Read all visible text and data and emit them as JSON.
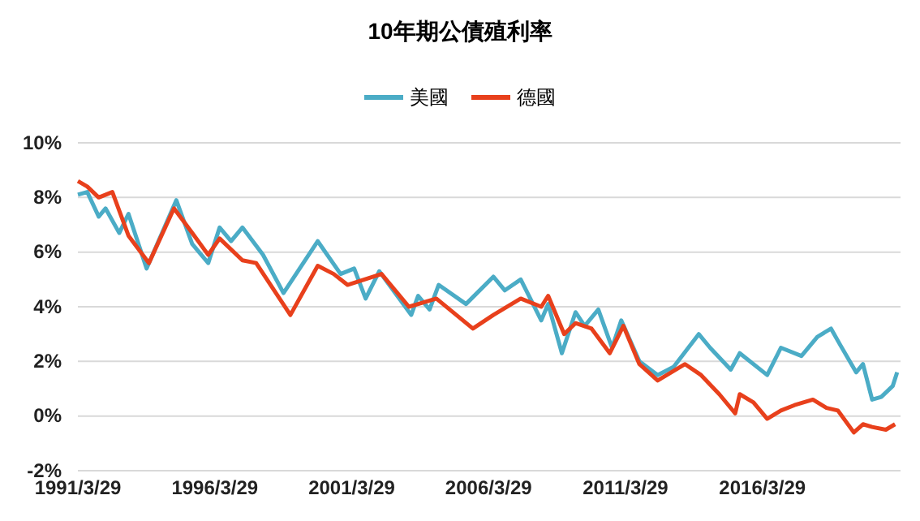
{
  "chart_data": {
    "type": "line",
    "title": "10年期公債殖利率",
    "legend": "top",
    "grid": "y",
    "line_style": "solid",
    "marker": "none",
    "xlim": [
      "1991-03-29",
      "2021-04-15"
    ],
    "xticks": [
      {
        "value": "1991-03-29",
        "label": "1991/3/29"
      },
      {
        "value": "1996-03-29",
        "label": "1996/3/29"
      },
      {
        "value": "2001-03-29",
        "label": "2001/3/29"
      },
      {
        "value": "2006-03-29",
        "label": "2006/3/29"
      },
      {
        "value": "2011-03-29",
        "label": "2011/3/29"
      },
      {
        "value": "2016-03-29",
        "label": "2016/3/29"
      }
    ],
    "ylim": [
      -2,
      10
    ],
    "yticks": [
      {
        "value": -2,
        "label": "-2%"
      },
      {
        "value": 0,
        "label": "0%"
      },
      {
        "value": 2,
        "label": "2%"
      },
      {
        "value": 4,
        "label": "4%"
      },
      {
        "value": 6,
        "label": "6%"
      },
      {
        "value": 8,
        "label": "8%"
      },
      {
        "value": 10,
        "label": "10%"
      }
    ],
    "series": [
      {
        "name": "美國",
        "color": "#4bacc6",
        "x": [
          "1991-03-29",
          "1991-08",
          "1992-01",
          "1992-04",
          "1992-10",
          "1993-02",
          "1993-10",
          "1994-11",
          "1995-06",
          "1996-01",
          "1996-06",
          "1996-11",
          "1997-04",
          "1998-01",
          "1998-10",
          "2000-01",
          "2000-11",
          "2001-05",
          "2001-10",
          "2002-04",
          "2003-06",
          "2003-09",
          "2004-02",
          "2004-06",
          "2005-06",
          "2006-06",
          "2006-11",
          "2007-06",
          "2008-03",
          "2008-06",
          "2008-12",
          "2009-06",
          "2009-10",
          "2010-04",
          "2010-10",
          "2011-02",
          "2011-10",
          "2012-06",
          "2013-01",
          "2013-12",
          "2014-05",
          "2015-02",
          "2015-06",
          "2016-06",
          "2016-12",
          "2017-09",
          "2018-04",
          "2018-10",
          "2019-02",
          "2019-09",
          "2019-12",
          "2020-04",
          "2020-08",
          "2021-01",
          "2021-03"
        ],
        "values": [
          8.1,
          8.2,
          7.3,
          7.6,
          6.7,
          7.4,
          5.4,
          7.9,
          6.3,
          5.6,
          6.9,
          6.4,
          6.9,
          5.9,
          4.5,
          6.4,
          5.2,
          5.4,
          4.3,
          5.3,
          3.7,
          4.4,
          3.9,
          4.8,
          4.1,
          5.1,
          4.6,
          5.0,
          3.5,
          4.1,
          2.3,
          3.8,
          3.3,
          3.9,
          2.5,
          3.5,
          2.0,
          1.5,
          1.8,
          3.0,
          2.5,
          1.7,
          2.3,
          1.5,
          2.5,
          2.2,
          2.9,
          3.2,
          2.6,
          1.6,
          1.9,
          0.6,
          0.7,
          1.1,
          1.6
        ]
      },
      {
        "name": "德國",
        "color": "#e8401c",
        "x": [
          "1991-03-29",
          "1991-08",
          "1992-01",
          "1992-07",
          "1993-02",
          "1993-11",
          "1994-10",
          "1995-06",
          "1996-01",
          "1996-06",
          "1997-04",
          "1997-10",
          "1999-01",
          "2000-01",
          "2000-08",
          "2001-02",
          "2002-05",
          "2003-05",
          "2004-05",
          "2005-09",
          "2006-06",
          "2007-06",
          "2008-03",
          "2008-06",
          "2009-01",
          "2009-06",
          "2010-01",
          "2010-09",
          "2011-03",
          "2011-10",
          "2012-06",
          "2013-06",
          "2014-01",
          "2014-09",
          "2015-04",
          "2015-06",
          "2015-12",
          "2016-06",
          "2016-12",
          "2017-06",
          "2018-02",
          "2018-08",
          "2019-01",
          "2019-08",
          "2019-12",
          "2020-04",
          "2020-10",
          "2021-02"
        ],
        "values": [
          8.6,
          8.4,
          8.0,
          8.2,
          6.6,
          5.6,
          7.6,
          6.7,
          5.9,
          6.5,
          5.7,
          5.6,
          3.7,
          5.5,
          5.2,
          4.8,
          5.2,
          4.0,
          4.3,
          3.2,
          3.7,
          4.3,
          4.0,
          4.4,
          3.0,
          3.4,
          3.2,
          2.3,
          3.3,
          1.9,
          1.3,
          1.9,
          1.5,
          0.8,
          0.1,
          0.8,
          0.5,
          -0.1,
          0.2,
          0.4,
          0.6,
          0.3,
          0.2,
          -0.6,
          -0.3,
          -0.4,
          -0.5,
          -0.3
        ]
      }
    ]
  }
}
